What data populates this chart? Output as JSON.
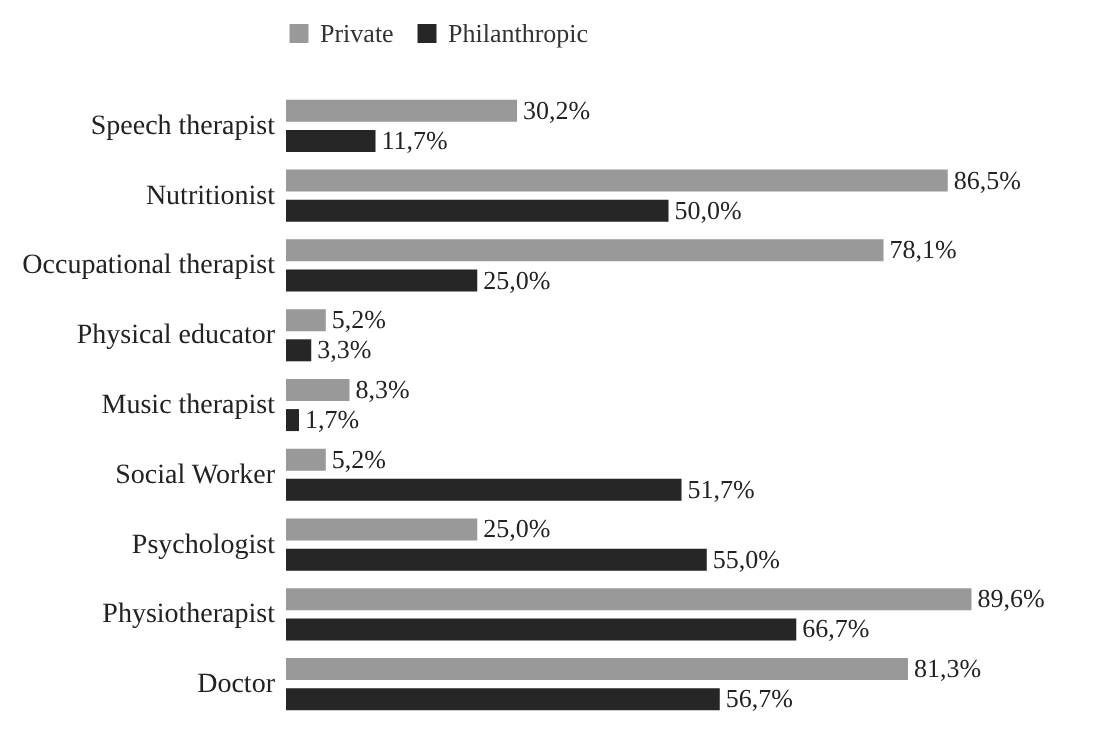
{
  "chart_data": {
    "type": "bar",
    "orientation": "horizontal",
    "legend": "top",
    "categories": [
      "Speech therapist",
      "Nutritionist",
      "Occupational therapist",
      "Physical educator",
      "Music therapist",
      "Social Worker",
      "Psychologist",
      "Physiotherapist",
      "Doctor"
    ],
    "series": [
      {
        "name": "Private",
        "color": "#999999",
        "values": [
          30.2,
          86.5,
          78.1,
          5.2,
          8.3,
          5.2,
          25.0,
          89.6,
          81.3
        ],
        "value_labels": [
          "30,2%",
          "86,5%",
          "78,1%",
          "5,2%",
          "8,3%",
          "5,2%",
          "25,0%",
          "89,6%",
          "81,3%"
        ]
      },
      {
        "name": "Philanthropic",
        "color": "#262626",
        "values": [
          11.7,
          50.0,
          25.0,
          3.3,
          1.7,
          51.7,
          55.0,
          66.7,
          56.7
        ],
        "value_labels": [
          "11,7%",
          "50,0%",
          "25,0%",
          "3,3%",
          "1,7%",
          "51,7%",
          "55,0%",
          "66,7%",
          "56,7%"
        ]
      }
    ]
  }
}
